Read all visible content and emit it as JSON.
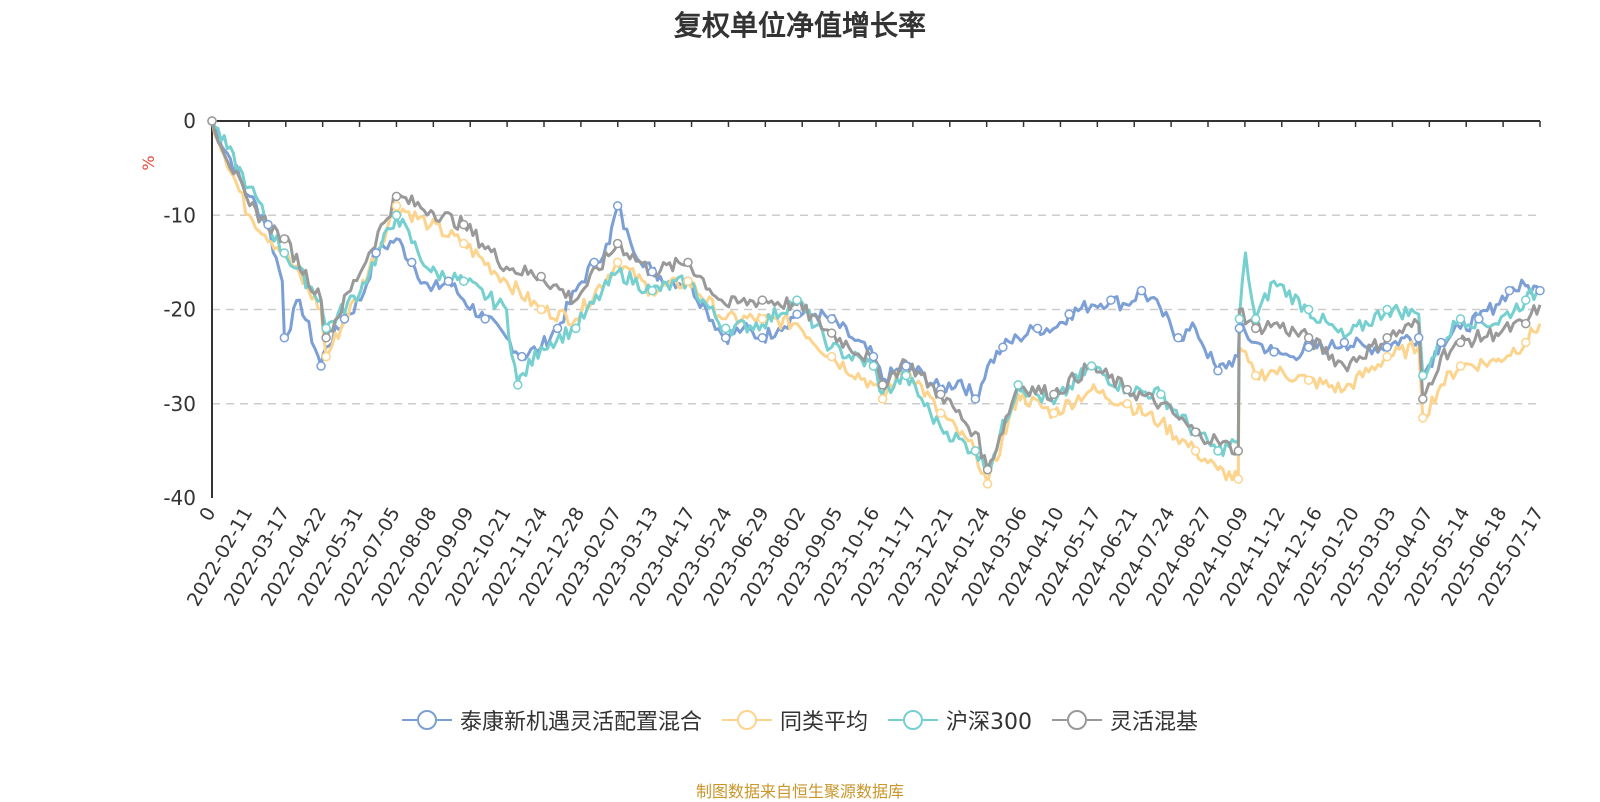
{
  "chart_data": {
    "type": "line",
    "title": "复权单位净值增长率",
    "ylabel": "%",
    "ylim": [
      -40,
      0
    ],
    "yticks": [
      0,
      -10,
      -20,
      -30,
      -40
    ],
    "x_start": "2022-01-05",
    "x_end": "2025-07-31",
    "xtick_labels": [
      "0",
      "2022-02-11",
      "2022-03-17",
      "2022-04-22",
      "2022-05-31",
      "2022-07-05",
      "2022-08-08",
      "2022-09-09",
      "2022-10-21",
      "2022-11-24",
      "2022-12-28",
      "2023-02-07",
      "2023-03-13",
      "2023-04-17",
      "2023-05-24",
      "2023-06-29",
      "2023-08-02",
      "2023-09-05",
      "2023-10-16",
      "2023-11-17",
      "2023-12-21",
      "2024-01-24",
      "2024-03-06",
      "2024-04-10",
      "2024-05-17",
      "2024-06-21",
      "2024-07-24",
      "2024-08-27",
      "2024-10-09",
      "2024-11-12",
      "2024-12-16",
      "2025-01-20",
      "2025-03-03",
      "2025-04-07",
      "2025-05-14",
      "2025-06-18",
      "2025-07-17"
    ],
    "series": [
      {
        "name": "泰康新机遇灵活配置混合",
        "color": "#7c9fd6",
        "x": [
          "2022-01-05",
          "2022-02-11",
          "2022-03-01",
          "2022-03-15",
          "2022-03-17",
          "2022-04-01",
          "2022-04-22",
          "2022-04-27",
          "2022-05-15",
          "2022-05-31",
          "2022-06-15",
          "2022-07-05",
          "2022-07-20",
          "2022-08-08",
          "2022-08-25",
          "2022-09-09",
          "2022-09-30",
          "2022-10-21",
          "2022-11-05",
          "2022-11-24",
          "2022-12-10",
          "2022-12-28",
          "2023-01-15",
          "2023-01-30",
          "2023-02-07",
          "2023-02-20",
          "2023-03-13",
          "2023-03-30",
          "2023-04-17",
          "2023-05-05",
          "2023-05-24",
          "2023-06-10",
          "2023-06-29",
          "2023-07-15",
          "2023-08-02",
          "2023-08-20",
          "2023-09-05",
          "2023-09-25",
          "2023-10-16",
          "2023-10-25",
          "2023-11-17",
          "2023-12-05",
          "2023-12-21",
          "2024-01-10",
          "2024-01-24",
          "2024-02-05",
          "2024-02-20",
          "2024-03-06",
          "2024-03-25",
          "2024-04-10",
          "2024-04-25",
          "2024-05-17",
          "2024-06-05",
          "2024-06-21",
          "2024-07-05",
          "2024-07-24",
          "2024-08-10",
          "2024-08-27",
          "2024-09-18",
          "2024-10-08",
          "2024-10-09",
          "2024-10-25",
          "2024-11-12",
          "2024-11-28",
          "2024-12-16",
          "2025-01-05",
          "2025-01-20",
          "2025-02-10",
          "2025-03-03",
          "2025-03-20",
          "2025-04-03",
          "2025-04-07",
          "2025-04-25",
          "2025-05-14",
          "2025-06-01",
          "2025-06-18",
          "2025-07-01",
          "2025-07-17",
          "2025-07-31"
        ],
        "y": [
          0,
          -8,
          -11,
          -17,
          -23,
          -19,
          -26,
          -24,
          -21,
          -19,
          -14,
          -12.5,
          -15,
          -18,
          -17,
          -19,
          -21,
          -23,
          -25,
          -24,
          -22,
          -18,
          -15,
          -13,
          -9,
          -13,
          -16,
          -17,
          -17,
          -20,
          -23,
          -22,
          -23,
          -22,
          -20.5,
          -20.5,
          -21,
          -23,
          -25,
          -27.5,
          -26,
          -27,
          -28.5,
          -27.5,
          -29.5,
          -26,
          -24,
          -23,
          -22,
          -22,
          -20.5,
          -19.5,
          -19,
          -19.5,
          -18,
          -20,
          -23,
          -22,
          -26.5,
          -25,
          -22,
          -23.5,
          -24.5,
          -25,
          -24,
          -24,
          -23.5,
          -24,
          -24,
          -23,
          -23,
          -27,
          -23.5,
          -22,
          -21,
          -19.5,
          -18,
          -17.5,
          -18
        ]
      },
      {
        "name": "同类平均",
        "color": "#fcd48e",
        "x": [
          "2022-01-05",
          "2022-02-11",
          "2022-03-17",
          "2022-04-22",
          "2022-04-27",
          "2022-05-31",
          "2022-07-05",
          "2022-08-08",
          "2022-09-09",
          "2022-10-21",
          "2022-11-24",
          "2022-12-28",
          "2023-02-07",
          "2023-03-13",
          "2023-04-17",
          "2023-05-24",
          "2023-06-29",
          "2023-08-02",
          "2023-09-05",
          "2023-10-16",
          "2023-10-25",
          "2023-11-17",
          "2023-12-21",
          "2024-01-24",
          "2024-02-05",
          "2024-03-06",
          "2024-04-10",
          "2024-05-17",
          "2024-06-21",
          "2024-07-24",
          "2024-08-27",
          "2024-09-18",
          "2024-10-08",
          "2024-10-09",
          "2024-10-25",
          "2024-11-12",
          "2024-12-16",
          "2025-01-20",
          "2025-03-03",
          "2025-04-03",
          "2025-04-07",
          "2025-04-25",
          "2025-05-14",
          "2025-06-18",
          "2025-07-17",
          "2025-07-31"
        ],
        "y": [
          0,
          -10,
          -14,
          -20,
          -25,
          -18,
          -9,
          -11,
          -13,
          -17,
          -20,
          -21,
          -15,
          -18,
          -17,
          -21,
          -21,
          -21.5,
          -25,
          -28,
          -29.5,
          -26,
          -31,
          -35,
          -38.5,
          -29,
          -31,
          -28.5,
          -30,
          -32,
          -35,
          -37,
          -38,
          -24,
          -27,
          -26.5,
          -27.5,
          -28.5,
          -25,
          -24,
          -31.5,
          -28,
          -26,
          -25.5,
          -23.5,
          -21.5
        ]
      },
      {
        "name": "沪深300",
        "color": "#75d0cf",
        "x": [
          "2022-01-05",
          "2022-02-11",
          "2022-03-17",
          "2022-04-22",
          "2022-04-27",
          "2022-05-31",
          "2022-07-05",
          "2022-08-08",
          "2022-09-09",
          "2022-10-21",
          "2022-11-01",
          "2022-11-24",
          "2022-12-28",
          "2023-02-07",
          "2023-03-13",
          "2023-04-17",
          "2023-05-24",
          "2023-06-29",
          "2023-08-02",
          "2023-09-05",
          "2023-10-16",
          "2023-10-25",
          "2023-11-17",
          "2023-12-21",
          "2024-01-24",
          "2024-02-05",
          "2024-03-06",
          "2024-04-10",
          "2024-05-17",
          "2024-06-21",
          "2024-07-24",
          "2024-08-27",
          "2024-09-18",
          "2024-10-08",
          "2024-10-09",
          "2024-10-15",
          "2024-10-25",
          "2024-11-12",
          "2024-12-16",
          "2025-01-20",
          "2025-03-03",
          "2025-04-03",
          "2025-04-07",
          "2025-04-25",
          "2025-05-14",
          "2025-06-18",
          "2025-07-17",
          "2025-07-31"
        ],
        "y": [
          0,
          -7,
          -14,
          -19,
          -22,
          -18,
          -10,
          -16,
          -17,
          -20,
          -28,
          -24,
          -22,
          -16,
          -18,
          -17,
          -22,
          -21.5,
          -19,
          -24,
          -26,
          -29,
          -27,
          -32.5,
          -35,
          -37,
          -28,
          -30,
          -26,
          -28.5,
          -29,
          -33,
          -35,
          -34,
          -21,
          -14,
          -21,
          -17,
          -20,
          -23,
          -20,
          -20.5,
          -27,
          -23.5,
          -21,
          -21.5,
          -19,
          -18
        ]
      },
      {
        "name": "灵活混基",
        "color": "#999999",
        "x": [
          "2022-01-05",
          "2022-02-11",
          "2022-03-17",
          "2022-04-22",
          "2022-04-27",
          "2022-05-31",
          "2022-07-05",
          "2022-08-08",
          "2022-09-09",
          "2022-10-21",
          "2022-11-24",
          "2022-12-28",
          "2023-02-07",
          "2023-03-13",
          "2023-04-17",
          "2023-05-24",
          "2023-06-29",
          "2023-08-02",
          "2023-09-05",
          "2023-10-16",
          "2023-10-25",
          "2023-11-17",
          "2023-12-21",
          "2024-01-24",
          "2024-02-05",
          "2024-03-06",
          "2024-04-10",
          "2024-05-17",
          "2024-06-21",
          "2024-07-24",
          "2024-08-27",
          "2024-09-18",
          "2024-10-08",
          "2024-10-09",
          "2024-10-25",
          "2024-11-12",
          "2024-12-16",
          "2025-01-20",
          "2025-03-03",
          "2025-04-03",
          "2025-04-07",
          "2025-04-25",
          "2025-05-14",
          "2025-06-18",
          "2025-07-17",
          "2025-07-31"
        ],
        "y": [
          0,
          -9,
          -12.5,
          -19,
          -23,
          -16,
          -8,
          -9.5,
          -11,
          -15.5,
          -16.5,
          -19,
          -13,
          -16,
          -15,
          -19.5,
          -19,
          -19.5,
          -22.5,
          -25.5,
          -28,
          -25.5,
          -29,
          -33,
          -37,
          -28,
          -29,
          -26,
          -28.5,
          -30,
          -33,
          -34,
          -35,
          -20,
          -22,
          -21.5,
          -23,
          -26,
          -23,
          -21.5,
          -29.5,
          -25,
          -23.5,
          -22.5,
          -21.5,
          -19.5
        ]
      }
    ]
  },
  "legend_items": [
    "泰康新机遇灵活配置混合",
    "同类平均",
    "沪深300",
    "灵活混基"
  ],
  "source": "制图数据来自恒生聚源数据库",
  "source_color": "#c8962a",
  "unit_color": "#e8473a"
}
